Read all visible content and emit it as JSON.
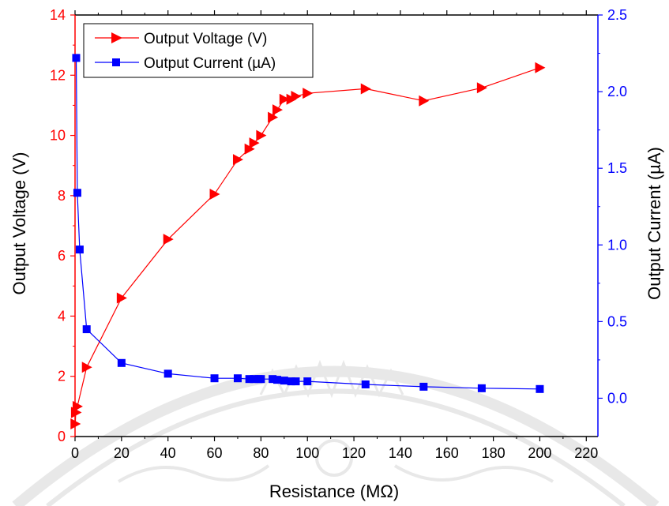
{
  "chart_data": {
    "type": "line",
    "xlabel": "Resistance (MΩ)",
    "ylabel_left": "Output Voltage (V)",
    "ylabel_right": "Output Current (µA)",
    "xlim": [
      0,
      225
    ],
    "ylim_left": [
      0,
      14
    ],
    "ylim_right": [
      -0.25,
      2.5
    ],
    "xticks": [
      0,
      20,
      40,
      60,
      80,
      100,
      120,
      140,
      160,
      180,
      200,
      220
    ],
    "yticks_left": [
      0,
      2,
      4,
      6,
      8,
      10,
      12,
      14
    ],
    "yticks_right": [
      0.0,
      0.5,
      1.0,
      1.5,
      2.0,
      2.5
    ],
    "xtick_labels": [
      "0",
      "20",
      "40",
      "60",
      "80",
      "100",
      "120",
      "140",
      "160",
      "180",
      "200",
      "220"
    ],
    "ytick_labels_left": [
      "0",
      "2",
      "4",
      "6",
      "8",
      "10",
      "12",
      "14"
    ],
    "ytick_labels_right": [
      "0.0",
      "0.5",
      "1.0",
      "1.5",
      "2.0",
      "2.5"
    ],
    "grid": false,
    "legend_placement": "top-left",
    "series": [
      {
        "name": "Output Voltage (V)",
        "axis": "left",
        "marker": "triangle-right",
        "color": "#ff0000",
        "x": [
          0.1,
          0.3,
          0.5,
          1,
          5,
          20,
          40,
          60,
          70,
          75,
          77,
          80,
          85,
          87,
          90,
          93,
          95,
          100,
          125,
          150,
          175,
          200
        ],
        "y": [
          0.42,
          0.8,
          0.8,
          1.0,
          2.3,
          4.6,
          6.55,
          8.05,
          9.2,
          9.55,
          9.75,
          10.0,
          10.6,
          10.85,
          11.2,
          11.2,
          11.3,
          11.4,
          11.55,
          11.15,
          11.58,
          12.25
        ]
      },
      {
        "name": "Output Current (µA)",
        "axis": "right",
        "marker": "square",
        "color": "#0000ff",
        "x": [
          0.5,
          1,
          2,
          5,
          20,
          40,
          60,
          70,
          75,
          77,
          79,
          80,
          85,
          87,
          90,
          93,
          95,
          100,
          125,
          150,
          175,
          200
        ],
        "y": [
          2.22,
          1.34,
          0.97,
          0.45,
          0.23,
          0.16,
          0.13,
          0.13,
          0.125,
          0.125,
          0.125,
          0.125,
          0.125,
          0.12,
          0.115,
          0.11,
          0.11,
          0.11,
          0.09,
          0.075,
          0.065,
          0.06
        ]
      }
    ]
  }
}
